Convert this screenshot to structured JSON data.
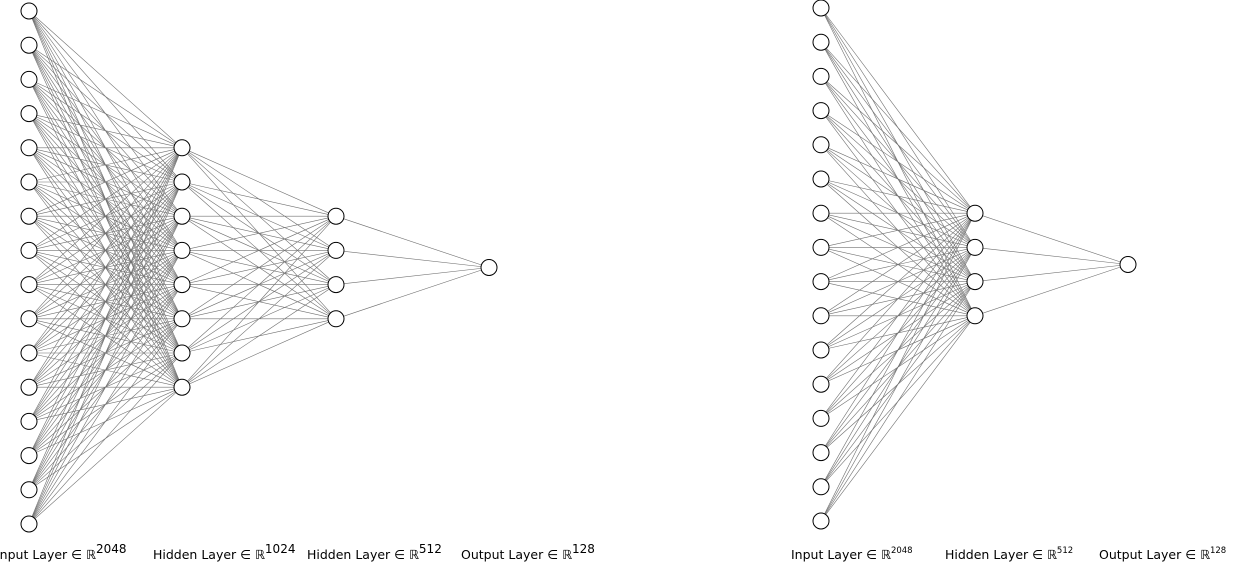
{
  "networks": [
    {
      "layers": [
        {
          "units": 16,
          "label": "Input Layer ∈ ℝ",
          "dim": "2048"
        },
        {
          "units": 8,
          "label": "Hidden Layer ∈ ℝ",
          "dim": "1024"
        },
        {
          "units": 4,
          "label": "Hidden Layer ∈ ℝ",
          "dim": "512"
        },
        {
          "units": 1,
          "label": "Output Layer ∈ ℝ",
          "dim": "128"
        }
      ]
    },
    {
      "layers": [
        {
          "units": 16,
          "label": "Input Layer ∈ ℝ",
          "dim": "2048"
        },
        {
          "units": 4,
          "label": "Hidden Layer ∈ ℝ",
          "dim": "512"
        },
        {
          "units": 1,
          "label": "Output Layer ∈ ℝ",
          "dim": "128"
        }
      ]
    }
  ],
  "colors": {
    "edge": "#707070",
    "node_stroke": "#000000",
    "node_fill": "#ffffff",
    "background": "#ffffff"
  }
}
